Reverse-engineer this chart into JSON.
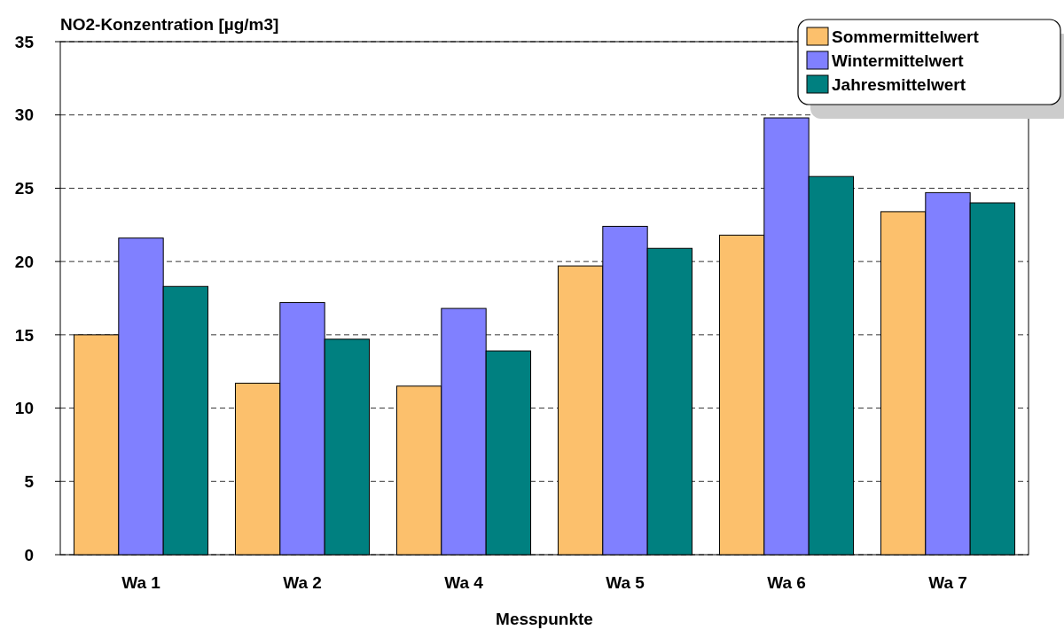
{
  "chart_data": {
    "type": "bar",
    "ylabel": "NO2-Konzentration [µg/m3]",
    "xlabel": "Messpunkte",
    "categories": [
      "Wa 1",
      "Wa 2",
      "Wa 4",
      "Wa 5",
      "Wa 6",
      "Wa 7"
    ],
    "series": [
      {
        "name": "Sommermittelwert",
        "color": "#fcc06c",
        "values": [
          15.0,
          11.7,
          11.5,
          19.7,
          21.8,
          23.4
        ]
      },
      {
        "name": "Wintermittelwert",
        "color": "#8080ff",
        "values": [
          21.6,
          17.2,
          16.8,
          22.4,
          29.8,
          24.7
        ]
      },
      {
        "name": "Jahresmittelwert",
        "color": "#008080",
        "values": [
          18.3,
          14.7,
          13.9,
          20.9,
          25.8,
          24.0
        ]
      }
    ],
    "ylim": [
      0,
      35
    ],
    "yticks": [
      0,
      5,
      10,
      15,
      20,
      25,
      30,
      35
    ],
    "grid": "y",
    "legend": "top right"
  }
}
